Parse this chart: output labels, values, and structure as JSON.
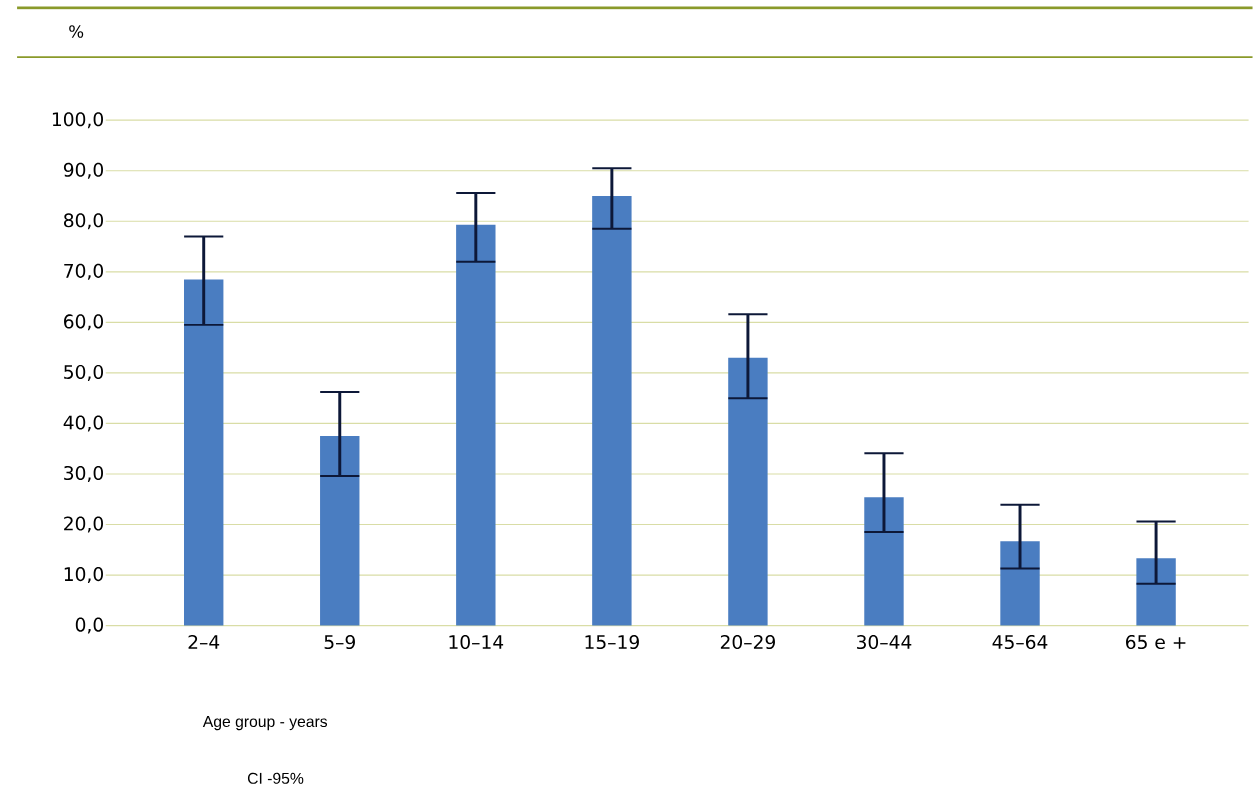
{
  "chart_data": {
    "type": "bar",
    "ylabel": "%",
    "xlabel": "Age group - years",
    "categories": [
      "2–4",
      "5–9",
      "10–14",
      "15–19",
      "20–29",
      "30–44",
      "45–64",
      "65 e +"
    ],
    "values": [
      68.5,
      37.5,
      79.3,
      85.0,
      53.0,
      25.4,
      16.7,
      13.3
    ],
    "errors": [
      [
        59.5,
        77.0
      ],
      [
        29.6,
        46.2
      ],
      [
        72.0,
        85.6
      ],
      [
        78.5,
        90.5
      ],
      [
        45.0,
        61.6
      ],
      [
        18.5,
        34.1
      ],
      [
        11.3,
        23.9
      ],
      [
        8.3,
        20.6
      ]
    ],
    "color": "#4a7dc1",
    "ylim": [
      0,
      100
    ],
    "yticks": [
      {
        "value": 0,
        "label": "0,0"
      },
      {
        "value": 10,
        "label": "10,0"
      },
      {
        "value": 20,
        "label": "20,0"
      },
      {
        "value": 30,
        "label": "30,0"
      },
      {
        "value": 40,
        "label": "40,0"
      },
      {
        "value": 50,
        "label": "50,0"
      },
      {
        "value": 60,
        "label": "60,0"
      },
      {
        "value": 70,
        "label": "70,0"
      },
      {
        "value": 80,
        "label": "80,0"
      },
      {
        "value": 90,
        "label": "90,0"
      },
      {
        "value": 100,
        "label": "100,0"
      }
    ],
    "grid": "y",
    "annotations": [
      "CI -95%"
    ]
  }
}
